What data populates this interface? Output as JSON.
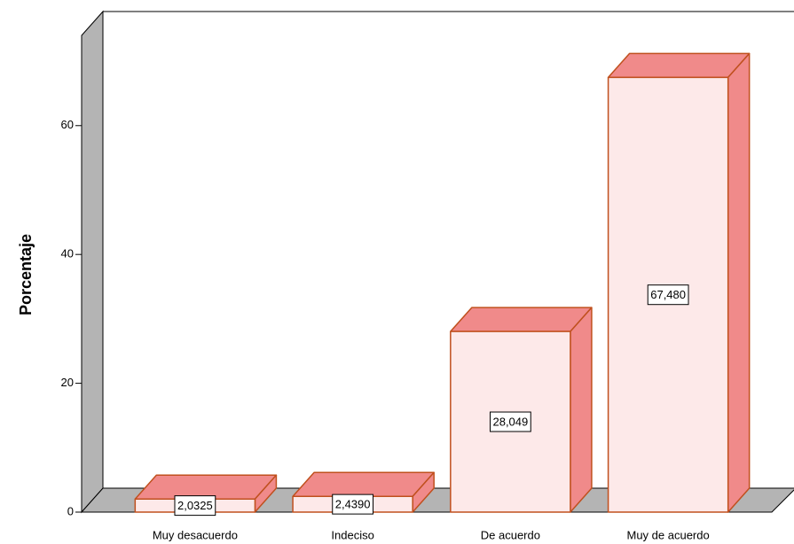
{
  "chart_data": {
    "type": "bar3d",
    "y_label": "Porcentaje",
    "categories": [
      "Muy desacuerdo",
      "Indeciso",
      "De acuerdo",
      "Muy de acuerdo"
    ],
    "values": [
      2.0325,
      2.439,
      28.049,
      67.48
    ],
    "value_labels": [
      "2,0325",
      "2,4390",
      "28,049",
      "67,480"
    ],
    "color": "#f08a8a",
    "ylim": [
      0,
      74
    ],
    "yticks": [
      0,
      20,
      40,
      60
    ]
  }
}
